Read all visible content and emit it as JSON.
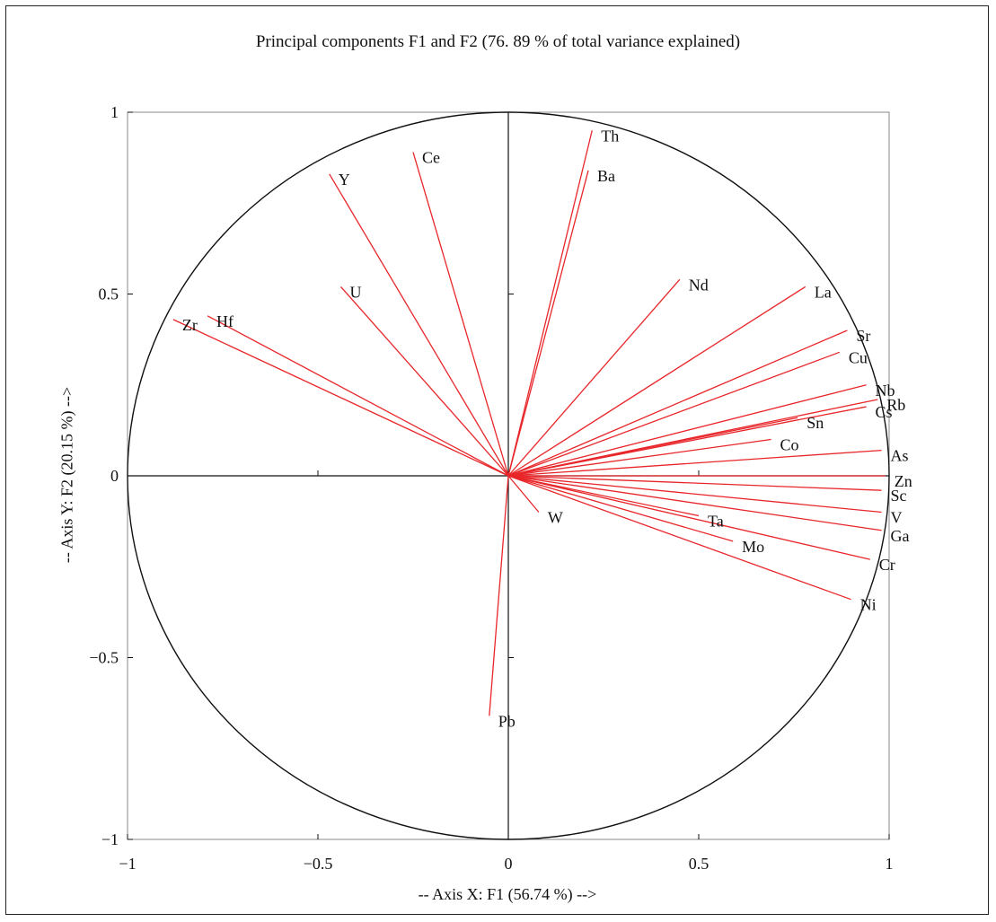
{
  "chart_data": {
    "type": "scatter",
    "subtype": "pca-correlation-circle",
    "title": "Principal components F1 and  F2 (76. 89 % of total variance explained)",
    "xlabel": "-- Axis X: F1 (56.74 %) -->",
    "ylabel": "-- Axis Y: F2 (20.15 %) -->",
    "xlim": [
      -1,
      1
    ],
    "ylim": [
      -1,
      1
    ],
    "xticks": [
      "−1",
      "−0.5",
      "0",
      "0.5",
      "1"
    ],
    "yticks": [
      "1",
      "0.5",
      "0",
      "−0.5",
      "−1"
    ],
    "grid": false,
    "legend": "none",
    "vector_color": "#e8262a",
    "circle_color": "#111111",
    "variables": [
      {
        "name": "Th",
        "x": 0.22,
        "y": 0.95
      },
      {
        "name": "Ba",
        "x": 0.21,
        "y": 0.84
      },
      {
        "name": "Ce",
        "x": -0.25,
        "y": 0.89
      },
      {
        "name": "Y",
        "x": -0.47,
        "y": 0.83
      },
      {
        "name": "U",
        "x": -0.44,
        "y": 0.52
      },
      {
        "name": "Zr",
        "x": -0.88,
        "y": 0.43
      },
      {
        "name": "Hf",
        "x": -0.79,
        "y": 0.44
      },
      {
        "name": "Nd",
        "x": 0.45,
        "y": 0.54
      },
      {
        "name": "La",
        "x": 0.78,
        "y": 0.52
      },
      {
        "name": "Sr",
        "x": 0.89,
        "y": 0.4
      },
      {
        "name": "Cu",
        "x": 0.87,
        "y": 0.34
      },
      {
        "name": "Nb",
        "x": 0.94,
        "y": 0.25
      },
      {
        "name": "Rb",
        "x": 0.97,
        "y": 0.21
      },
      {
        "name": "Cs",
        "x": 0.94,
        "y": 0.19
      },
      {
        "name": "Sn",
        "x": 0.76,
        "y": 0.16
      },
      {
        "name": "Co",
        "x": 0.69,
        "y": 0.1
      },
      {
        "name": "As",
        "x": 0.98,
        "y": 0.07
      },
      {
        "name": "Zn",
        "x": 0.99,
        "y": 0.0
      },
      {
        "name": "Sc",
        "x": 0.98,
        "y": -0.04
      },
      {
        "name": "V",
        "x": 0.98,
        "y": -0.1
      },
      {
        "name": "Ga",
        "x": 0.98,
        "y": -0.15
      },
      {
        "name": "Cr",
        "x": 0.95,
        "y": -0.23
      },
      {
        "name": "Ni",
        "x": 0.9,
        "y": -0.34
      },
      {
        "name": "Ta",
        "x": 0.5,
        "y": -0.11
      },
      {
        "name": "Mo",
        "x": 0.59,
        "y": -0.18
      },
      {
        "name": "W",
        "x": 0.08,
        "y": -0.1
      },
      {
        "name": "Pb",
        "x": -0.05,
        "y": -0.66
      }
    ]
  }
}
